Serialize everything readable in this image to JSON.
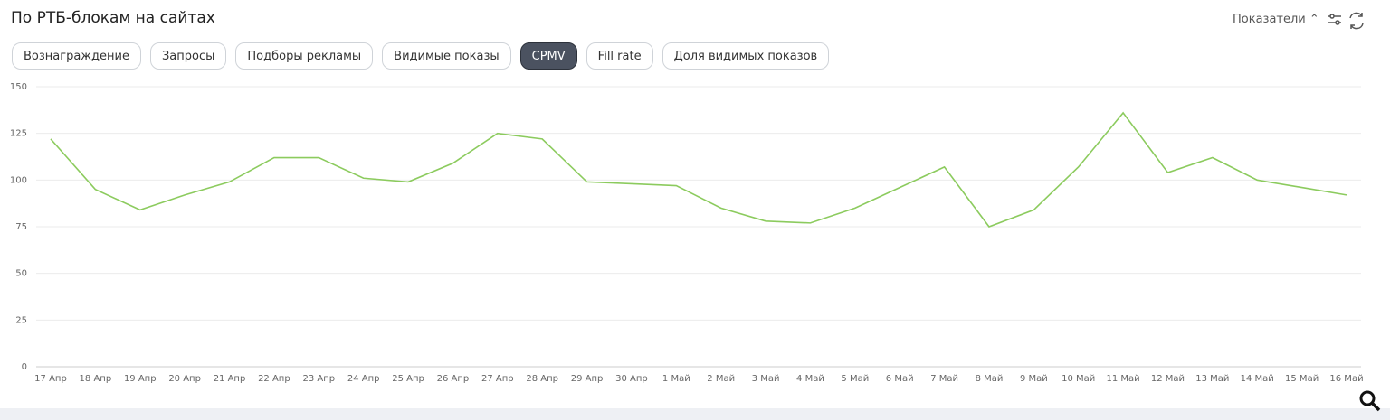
{
  "header": {
    "title": "По РТБ-блокам на сайтах",
    "metrics_button": "Показатели"
  },
  "tabs": [
    {
      "label": "Вознаграждение",
      "active": false
    },
    {
      "label": "Запросы",
      "active": false
    },
    {
      "label": "Подборы рекламы",
      "active": false
    },
    {
      "label": "Видимые показы",
      "active": false
    },
    {
      "label": "CPMV",
      "active": true
    },
    {
      "label": "Fill rate",
      "active": false
    },
    {
      "label": "Доля видимых показов",
      "active": false
    }
  ],
  "chart_data": {
    "type": "line",
    "categories": [
      "17 Апр",
      "18 Апр",
      "19 Апр",
      "20 Апр",
      "21 Апр",
      "22 Апр",
      "23 Апр",
      "24 Апр",
      "25 Апр",
      "26 Апр",
      "27 Апр",
      "28 Апр",
      "29 Апр",
      "30 Апр",
      "1 Май",
      "2 Май",
      "3 Май",
      "4 Май",
      "5 Май",
      "6 Май",
      "7 Май",
      "8 Май",
      "9 Май",
      "10 Май",
      "11 Май",
      "12 Май",
      "13 Май",
      "14 Май",
      "15 Май",
      "16 Май"
    ],
    "series": [
      {
        "name": "CPMV",
        "color": "#8ccb5e",
        "values": [
          122,
          95,
          84,
          92,
          99,
          112,
          112,
          101,
          99,
          109,
          125,
          122,
          99,
          98,
          97,
          85,
          78,
          77,
          85,
          96,
          107,
          75,
          84,
          107,
          136,
          104,
          112,
          100,
          96,
          92
        ]
      }
    ],
    "ylim": [
      0,
      150
    ],
    "yticks": [
      0,
      25,
      50,
      75,
      100,
      125,
      150
    ],
    "grid": true
  }
}
